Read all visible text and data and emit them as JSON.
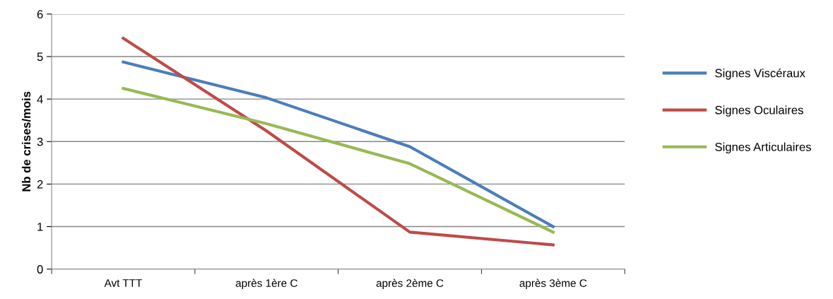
{
  "chart_data": {
    "type": "line",
    "ylabel": "Nb de crises/mois",
    "categories": [
      "Avt TTT",
      "après 1ère C",
      "après 2ème C",
      "après 3ème C"
    ],
    "series": [
      {
        "name": "Signes Viscéraux",
        "color": "#4a7ebb",
        "values": [
          4.87,
          4.03,
          2.88,
          1.0
        ]
      },
      {
        "name": "Signes Oculaires",
        "color": "#be4b48",
        "values": [
          5.43,
          3.25,
          0.87,
          0.57
        ]
      },
      {
        "name": "Signes Articulaires",
        "color": "#98b954",
        "values": [
          4.25,
          3.42,
          2.48,
          0.87
        ]
      }
    ],
    "ylim": [
      0,
      6
    ],
    "yticks": [
      0,
      1,
      2,
      3,
      4,
      5,
      6
    ],
    "grid": "y",
    "legend": "right",
    "marker": "none",
    "line_style": "solid"
  }
}
